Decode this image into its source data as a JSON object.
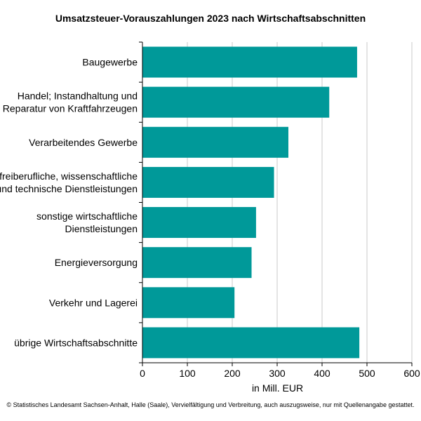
{
  "chart_data": {
    "type": "bar",
    "orientation": "horizontal",
    "title": "Umsatzsteuer-Vorauszahlungen 2023 nach Wirtschaftsabschnitten",
    "xlabel": "in Mill. EUR",
    "ylabel": "",
    "xlim": [
      0,
      600
    ],
    "xticks": [
      0,
      100,
      200,
      300,
      400,
      500,
      600
    ],
    "grid": "vertical",
    "bar_color": "#009999",
    "categories": [
      [
        "Baugewerbe"
      ],
      [
        "Handel; Instandhaltung und",
        "Reparatur von Kraftfahrzeugen"
      ],
      [
        "Verarbeitendes Gewerbe"
      ],
      [
        "freiberufliche, wissenschaftliche",
        "und technische Dienstleistungen"
      ],
      [
        "sonstige wirtschaftliche",
        "Dienstleistungen"
      ],
      [
        "Energieversorgung"
      ],
      [
        "Verkehr und Lagerei"
      ],
      [
        "übrige Wirtschaftsabschnitte"
      ]
    ],
    "values": [
      478,
      416,
      325,
      293,
      253,
      243,
      205,
      483
    ]
  },
  "footer": "© Statistisches Landesamt Sachsen-Anhalt, Halle (Saale), Vervielfältigung und Verbreitung, auch auszugsweise, nur mit Quellenangabe gestattet."
}
